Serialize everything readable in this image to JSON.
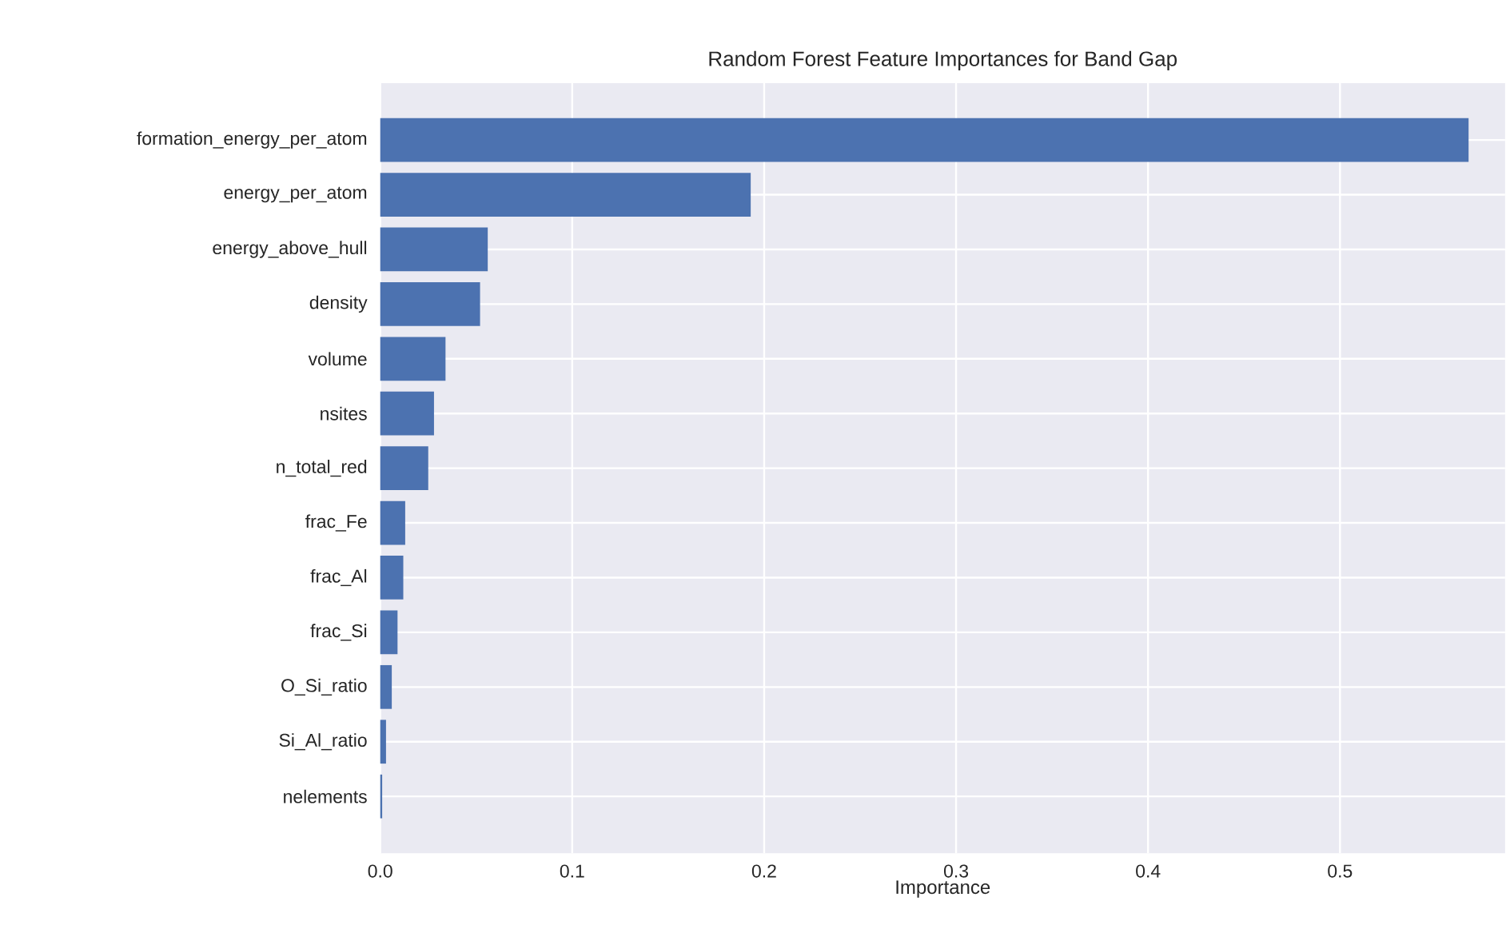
{
  "chart_data": {
    "type": "bar",
    "orientation": "horizontal",
    "title": "Random Forest Feature Importances for Band Gap",
    "xlabel": "Importance",
    "categories": [
      "formation_energy_per_atom",
      "energy_per_atom",
      "energy_above_hull",
      "density",
      "volume",
      "nsites",
      "n_total_red",
      "frac_Fe",
      "frac_Al",
      "frac_Si",
      "O_Si_ratio",
      "Si_Al_ratio",
      "nelements"
    ],
    "values": [
      0.567,
      0.193,
      0.056,
      0.052,
      0.034,
      0.028,
      0.025,
      0.013,
      0.012,
      0.009,
      0.006,
      0.003,
      0.001
    ],
    "color": "#4c72b0",
    "xlim": [
      0,
      0.586
    ],
    "xticks": [
      {
        "value": 0,
        "label": "0.0"
      },
      0.1,
      0.2,
      0.3,
      0.4,
      0.5
    ],
    "grid": true
  }
}
